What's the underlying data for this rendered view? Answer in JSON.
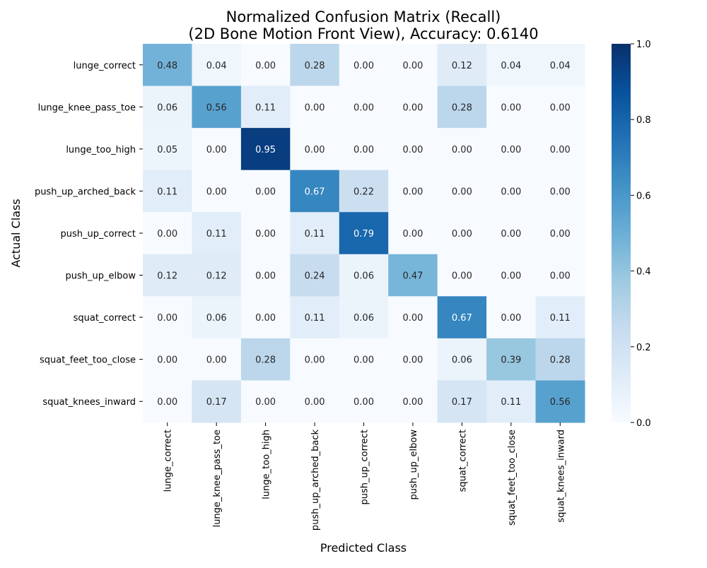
{
  "chart_data": {
    "type": "heatmap",
    "title_line1": "Normalized Confusion Matrix (Recall)",
    "title_line2": "(2D Bone Motion Front View), Accuracy: 0.6140",
    "xlabel": "Predicted Class",
    "ylabel": "Actual Class",
    "x_categories": [
      "lunge_correct",
      "lunge_knee_pass_toe",
      "lunge_too_high",
      "push_up_arched_back",
      "push_up_correct",
      "push_up_elbow",
      "squat_correct",
      "squat_feet_too_close",
      "squat_knees_inward"
    ],
    "y_categories": [
      "lunge_correct",
      "lunge_knee_pass_toe",
      "lunge_too_high",
      "push_up_arched_back",
      "push_up_correct",
      "push_up_elbow",
      "squat_correct",
      "squat_feet_too_close",
      "squat_knees_inward"
    ],
    "values": [
      [
        0.48,
        0.04,
        0.0,
        0.28,
        0.0,
        0.0,
        0.12,
        0.04,
        0.04
      ],
      [
        0.06,
        0.56,
        0.11,
        0.0,
        0.0,
        0.0,
        0.28,
        0.0,
        0.0
      ],
      [
        0.05,
        0.0,
        0.95,
        0.0,
        0.0,
        0.0,
        0.0,
        0.0,
        0.0
      ],
      [
        0.11,
        0.0,
        0.0,
        0.67,
        0.22,
        0.0,
        0.0,
        0.0,
        0.0
      ],
      [
        0.0,
        0.11,
        0.0,
        0.11,
        0.79,
        0.0,
        0.0,
        0.0,
        0.0
      ],
      [
        0.12,
        0.12,
        0.0,
        0.24,
        0.06,
        0.47,
        0.0,
        0.0,
        0.0
      ],
      [
        0.0,
        0.06,
        0.0,
        0.11,
        0.06,
        0.0,
        0.67,
        0.0,
        0.11
      ],
      [
        0.0,
        0.0,
        0.28,
        0.0,
        0.0,
        0.0,
        0.06,
        0.39,
        0.28
      ],
      [
        0.0,
        0.17,
        0.0,
        0.0,
        0.0,
        0.0,
        0.17,
        0.11,
        0.56
      ]
    ],
    "value_format_decimals": 2,
    "colormap": "Blues",
    "vmin": 0.0,
    "vmax": 1.0,
    "colorbar_ticks": [
      0.0,
      0.2,
      0.4,
      0.6,
      0.8,
      1.0
    ],
    "colorbar_tick_labels": [
      "0.0",
      "0.2",
      "0.4",
      "0.6",
      "0.8",
      "1.0"
    ]
  }
}
